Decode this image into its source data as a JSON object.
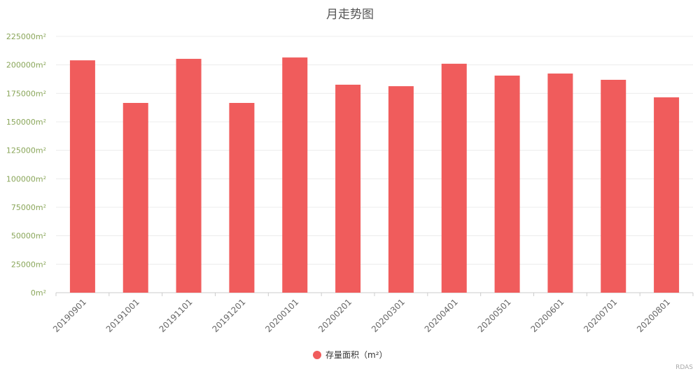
{
  "chart_data": {
    "type": "bar",
    "title": "月走势图",
    "categories": [
      "20190901",
      "20191001",
      "20191101",
      "20191201",
      "20200101",
      "20200201",
      "20200301",
      "20200401",
      "20200501",
      "20200601",
      "20200701",
      "20200801"
    ],
    "series": [
      {
        "name": "存量面积（m²）",
        "values": [
          204000,
          166600,
          205300,
          166600,
          206500,
          182600,
          181300,
          201000,
          190600,
          192400,
          186900,
          171500
        ],
        "color": "#f05c5c"
      }
    ],
    "ylim": [
      0,
      225000
    ],
    "yticks": [
      "0m²",
      "25000m²",
      "50000m²",
      "75000m²",
      "100000m²",
      "125000m²",
      "150000m²",
      "175000m²",
      "200000m²",
      "225000m²"
    ],
    "grid": true,
    "legend": "bottom",
    "axis_label_color": "#8aa65a"
  },
  "credit": "RDAS"
}
